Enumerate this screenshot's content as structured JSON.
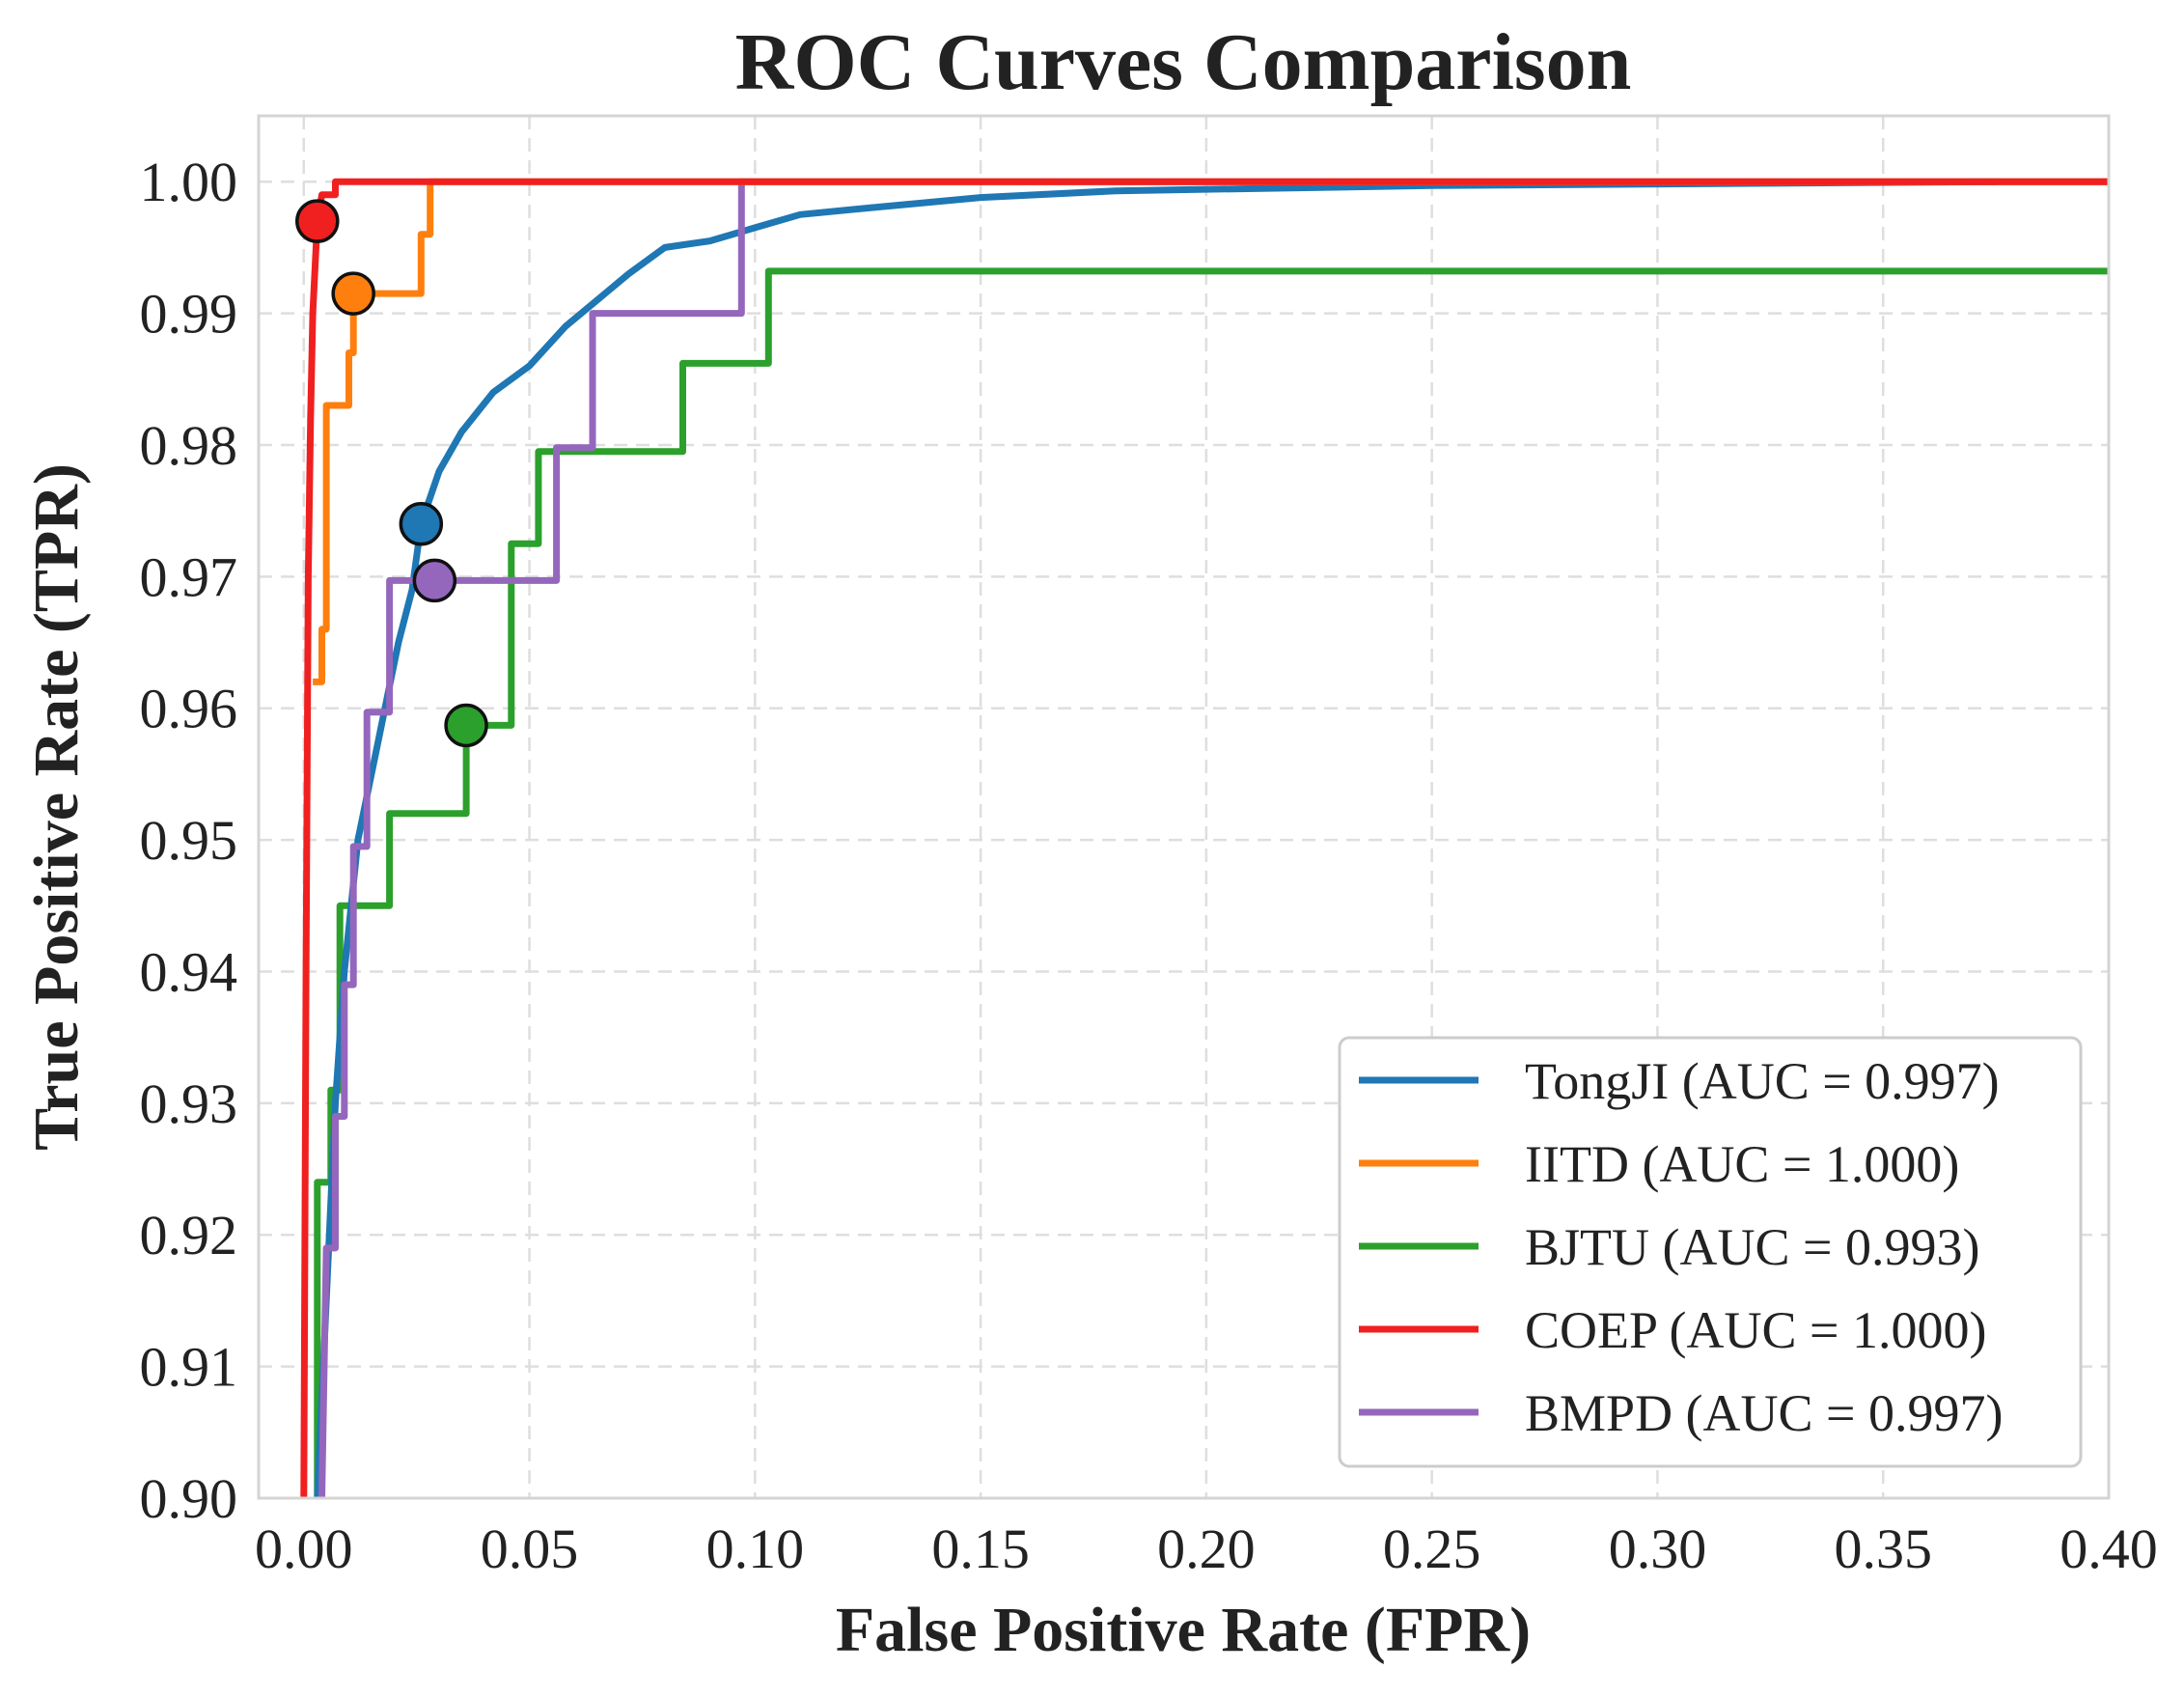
{
  "chart_data": {
    "type": "line",
    "title": "ROC Curves Comparison",
    "xlabel": "False Positive Rate (FPR)",
    "ylabel": "True Positive Rate (TPR)",
    "xlim": [
      -0.01,
      0.4
    ],
    "ylim": [
      0.9,
      1.005
    ],
    "xticks": [
      0.0,
      0.05,
      0.1,
      0.15,
      0.2,
      0.25,
      0.3,
      0.35,
      0.4
    ],
    "xtick_labels": [
      "0.00",
      "0.05",
      "0.10",
      "0.15",
      "0.20",
      "0.25",
      "0.30",
      "0.35",
      "0.40"
    ],
    "yticks": [
      0.9,
      0.91,
      0.92,
      0.93,
      0.94,
      0.95,
      0.96,
      0.97,
      0.98,
      0.99,
      1.0
    ],
    "ytick_labels": [
      "0.90",
      "0.91",
      "0.92",
      "0.93",
      "0.94",
      "0.95",
      "0.96",
      "0.97",
      "0.98",
      "0.99",
      "1.00"
    ],
    "grid": true,
    "legend_position": "bottom-right",
    "series": [
      {
        "name": "TongJI (AUC = 0.997)",
        "color": "#1f77b4",
        "marker": [
          0.026,
          0.974
        ],
        "points": [
          [
            0.003,
            0.9
          ],
          [
            0.005,
            0.915
          ],
          [
            0.007,
            0.93
          ],
          [
            0.009,
            0.94
          ],
          [
            0.012,
            0.95
          ],
          [
            0.015,
            0.955
          ],
          [
            0.018,
            0.96
          ],
          [
            0.021,
            0.965
          ],
          [
            0.024,
            0.969
          ],
          [
            0.026,
            0.974
          ],
          [
            0.03,
            0.978
          ],
          [
            0.035,
            0.981
          ],
          [
            0.042,
            0.984
          ],
          [
            0.05,
            0.986
          ],
          [
            0.058,
            0.989
          ],
          [
            0.065,
            0.991
          ],
          [
            0.072,
            0.993
          ],
          [
            0.08,
            0.995
          ],
          [
            0.09,
            0.9955
          ],
          [
            0.1,
            0.9965
          ],
          [
            0.11,
            0.9975
          ],
          [
            0.125,
            0.998
          ],
          [
            0.15,
            0.9988
          ],
          [
            0.18,
            0.9993
          ],
          [
            0.25,
            0.9997
          ],
          [
            0.375,
            1.0
          ]
        ]
      },
      {
        "name": "IITD (AUC = 1.000)",
        "color": "#ff7f0e",
        "marker": [
          0.011,
          0.9915
        ],
        "points": [
          [
            0.002,
            0.962
          ],
          [
            0.004,
            0.962
          ],
          [
            0.004,
            0.966
          ],
          [
            0.005,
            0.966
          ],
          [
            0.005,
            0.983
          ],
          [
            0.01,
            0.983
          ],
          [
            0.01,
            0.987
          ],
          [
            0.011,
            0.987
          ],
          [
            0.011,
            0.9915
          ],
          [
            0.026,
            0.9915
          ],
          [
            0.026,
            0.996
          ],
          [
            0.028,
            0.996
          ],
          [
            0.028,
            1.0
          ],
          [
            0.4,
            1.0
          ]
        ]
      },
      {
        "name": "BJTU (AUC = 0.993)",
        "color": "#2ca02c",
        "marker": [
          0.036,
          0.9587
        ],
        "points": [
          [
            0.003,
            0.9
          ],
          [
            0.003,
            0.924
          ],
          [
            0.006,
            0.924
          ],
          [
            0.006,
            0.931
          ],
          [
            0.008,
            0.931
          ],
          [
            0.008,
            0.945
          ],
          [
            0.019,
            0.945
          ],
          [
            0.019,
            0.952
          ],
          [
            0.036,
            0.952
          ],
          [
            0.036,
            0.9587
          ],
          [
            0.046,
            0.9587
          ],
          [
            0.046,
            0.9725
          ],
          [
            0.052,
            0.9725
          ],
          [
            0.052,
            0.9795
          ],
          [
            0.084,
            0.9795
          ],
          [
            0.084,
            0.9862
          ],
          [
            0.103,
            0.9862
          ],
          [
            0.103,
            0.9932
          ],
          [
            0.4,
            0.9932
          ]
        ]
      },
      {
        "name": "COEP (AUC = 1.000)",
        "color": "#f02020",
        "marker": [
          0.003,
          0.997
        ],
        "points": [
          [
            0.0,
            0.9
          ],
          [
            0.0005,
            0.94
          ],
          [
            0.001,
            0.97
          ],
          [
            0.0015,
            0.982
          ],
          [
            0.002,
            0.99
          ],
          [
            0.003,
            0.997
          ],
          [
            0.004,
            0.999
          ],
          [
            0.007,
            0.999
          ],
          [
            0.007,
            1.0
          ],
          [
            0.4,
            1.0
          ]
        ]
      },
      {
        "name": "BMPD (AUC = 0.997)",
        "color": "#9467bd",
        "marker": [
          0.029,
          0.9697
        ],
        "points": [
          [
            0.004,
            0.9
          ],
          [
            0.005,
            0.919
          ],
          [
            0.007,
            0.919
          ],
          [
            0.007,
            0.929
          ],
          [
            0.009,
            0.929
          ],
          [
            0.009,
            0.939
          ],
          [
            0.011,
            0.939
          ],
          [
            0.011,
            0.9495
          ],
          [
            0.014,
            0.9495
          ],
          [
            0.014,
            0.9597
          ],
          [
            0.019,
            0.9597
          ],
          [
            0.019,
            0.9697
          ],
          [
            0.056,
            0.9697
          ],
          [
            0.056,
            0.9798
          ],
          [
            0.064,
            0.9798
          ],
          [
            0.064,
            0.99
          ],
          [
            0.097,
            0.99
          ],
          [
            0.097,
            1.0
          ],
          [
            0.4,
            1.0
          ]
        ]
      }
    ]
  }
}
